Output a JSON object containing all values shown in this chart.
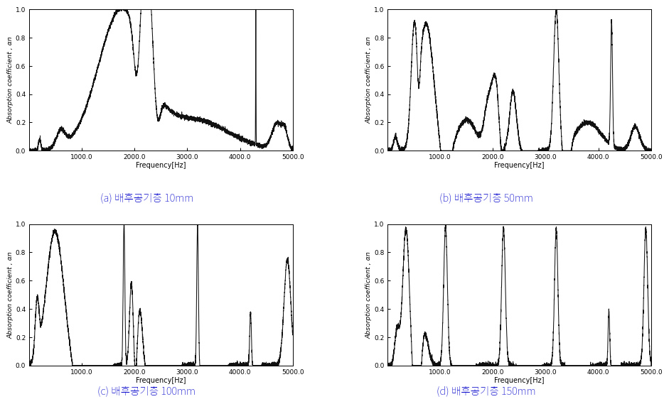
{
  "subplots": [
    {
      "label_a": "(a)",
      "label_b": " 배후공기층 ",
      "label_c": "10",
      "label_d": "mm",
      "ylabel": "Absorption coefficient , αn",
      "xlabel": "Frequency[Hz]",
      "xlim": [
        0,
        5000
      ],
      "ylim": [
        0.0,
        1.0
      ],
      "xtick_vals": [
        0,
        1000,
        2000,
        3000,
        4000,
        5000
      ],
      "xtick_labels": [
        "",
        "1000.0",
        "2000.0",
        "3000.0",
        "4000.0",
        "5000.0"
      ],
      "ytick_vals": [
        0.0,
        0.2,
        0.4,
        0.6,
        0.8,
        1.0
      ],
      "ytick_labels": [
        "0.0",
        "0.2",
        "0.4",
        "0.6",
        "0.8",
        "1.0"
      ],
      "curve": "a"
    },
    {
      "label_a": "(b)",
      "label_b": " 배후공기층 ",
      "label_c": "50",
      "label_d": "mm",
      "ylabel": "Absorption coefficient , αn",
      "xlabel": "Frequency[Hz]",
      "xlim": [
        0,
        5000
      ],
      "ylim": [
        0.0,
        1.0
      ],
      "xtick_vals": [
        0,
        1000,
        2000,
        3000,
        4000,
        5000
      ],
      "xtick_labels": [
        "",
        "1000.0",
        "2000.0",
        "3000.0",
        "4000.0",
        "5000.0"
      ],
      "ytick_vals": [
        0.0,
        0.2,
        0.4,
        0.6,
        0.8,
        1.0
      ],
      "ytick_labels": [
        "0.0",
        "0.2",
        "0.4",
        "0.6",
        "0.8",
        "1.0"
      ],
      "curve": "b"
    },
    {
      "label_a": "(c)",
      "label_b": " 배후공기층 ",
      "label_c": "100",
      "label_d": "mm",
      "ylabel": "Absorption coefficient , αn",
      "xlabel": "Frequency[Hz]",
      "xlim": [
        0,
        5000
      ],
      "ylim": [
        0.0,
        1.0
      ],
      "xtick_vals": [
        0,
        1000,
        2000,
        3000,
        4000,
        5000
      ],
      "xtick_labels": [
        "",
        "1000.0",
        "2000.0",
        "3000.0",
        "4000.0",
        "5000.0"
      ],
      "ytick_vals": [
        0.0,
        0.2,
        0.4,
        0.6,
        0.8,
        1.0
      ],
      "ytick_labels": [
        "0.0",
        "0.2",
        "0.4",
        "0.6",
        "0.8",
        "1.0"
      ],
      "curve": "c"
    },
    {
      "label_a": "(d)",
      "label_b": " 배후공기층 ",
      "label_c": "150",
      "label_d": "mm",
      "ylabel": "Absorption coefficient , αn",
      "xlabel": "Frequency[Hz]",
      "xlim": [
        0,
        5000
      ],
      "ylim": [
        0.0,
        1.0
      ],
      "xtick_vals": [
        0,
        1000,
        2000,
        3000,
        4000,
        5000
      ],
      "xtick_labels": [
        "",
        "1000.0",
        "2000.0",
        "3000.0",
        "4000.0",
        "5000.0"
      ],
      "ytick_vals": [
        0.0,
        0.2,
        0.4,
        0.6,
        0.8,
        1.0
      ],
      "ytick_labels": [
        "0.0",
        "0.2",
        "0.4",
        "0.6",
        "0.8",
        "1.0"
      ],
      "curve": "d"
    }
  ],
  "line_color": "#111111",
  "line_width": 0.75,
  "bg_color": "#ffffff",
  "label_color": "#0000cc",
  "label_fontsize": 10.5,
  "axis_label_fontsize": 7.0,
  "tick_fontsize": 6.5
}
